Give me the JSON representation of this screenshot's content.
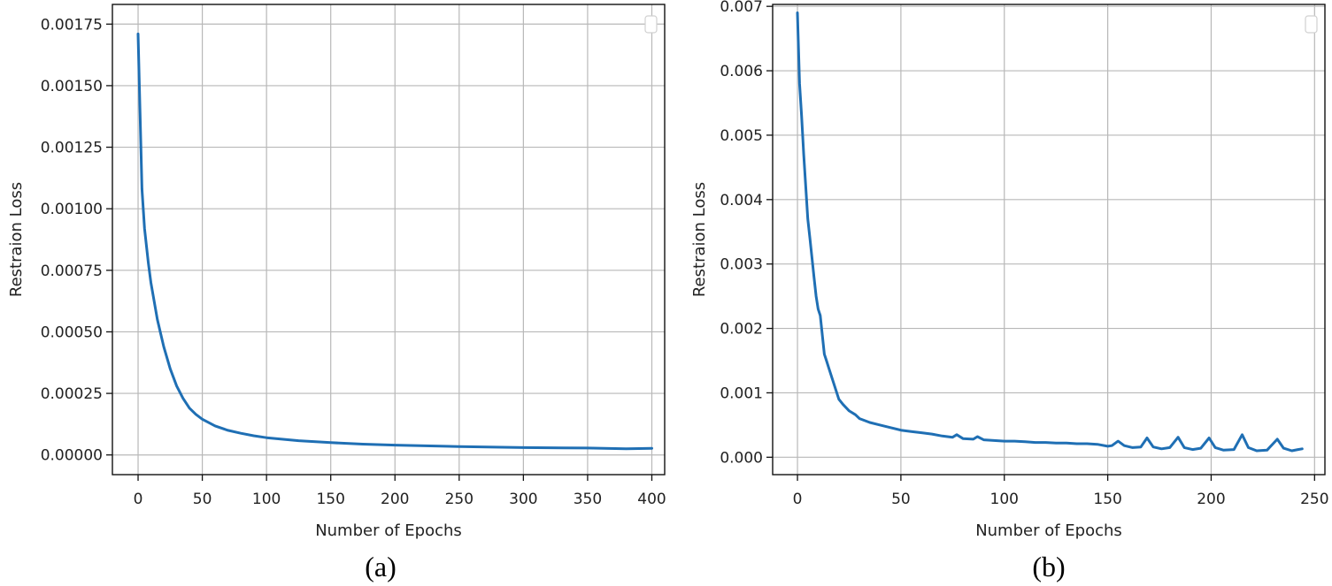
{
  "chart_data": [
    {
      "type": "line",
      "panel_label": "(a)",
      "xlabel": "Number of Epochs",
      "ylabel": "Restraion Loss",
      "xlim": [
        -20,
        410
      ],
      "ylim": [
        -8e-05,
        0.00183
      ],
      "xticks": [
        0,
        50,
        100,
        150,
        200,
        250,
        300,
        350,
        400
      ],
      "xtick_labels": [
        "0",
        "50",
        "100",
        "150",
        "200",
        "250",
        "300",
        "350",
        "400"
      ],
      "yticks": [
        0.0,
        0.00025,
        0.0005,
        0.00075,
        0.001,
        0.00125,
        0.0015,
        0.00175
      ],
      "ytick_labels": [
        "0.00000",
        "0.00025",
        "0.00050",
        "0.00075",
        "0.00100",
        "0.00125",
        "0.00150",
        "0.00175"
      ],
      "grid": true,
      "legend": "top-right (empty)",
      "color": "#1f6fb4",
      "series": [
        {
          "x": [
            0,
            3,
            5,
            8,
            10,
            15,
            20,
            25,
            30,
            35,
            40,
            45,
            50,
            60,
            70,
            80,
            90,
            100,
            125,
            150,
            175,
            200,
            250,
            300,
            350,
            380,
            400
          ],
          "y": [
            0.00171,
            0.00108,
            0.00092,
            0.00078,
            0.0007,
            0.00055,
            0.00044,
            0.00035,
            0.00028,
            0.00023,
            0.00019,
            0.000165,
            0.000145,
            0.000118,
            0.0001,
            8.8e-05,
            7.8e-05,
            7e-05,
            5.8e-05,
            5e-05,
            4.4e-05,
            4e-05,
            3.4e-05,
            3e-05,
            2.8e-05,
            2.5e-05,
            2.7e-05
          ]
        }
      ]
    },
    {
      "type": "line",
      "panel_label": "(b)",
      "xlabel": "Number of Epochs",
      "ylabel": "Restraion Loss",
      "xlim": [
        -12,
        255
      ],
      "ylim": [
        -0.00027,
        0.00703
      ],
      "xticks": [
        0,
        50,
        100,
        150,
        200,
        250
      ],
      "xtick_labels": [
        "0",
        "50",
        "100",
        "150",
        "200",
        "250"
      ],
      "yticks": [
        0.0,
        0.001,
        0.002,
        0.003,
        0.004,
        0.005,
        0.006,
        0.007
      ],
      "ytick_labels": [
        "0.000",
        "0.001",
        "0.002",
        "0.003",
        "0.004",
        "0.005",
        "0.006",
        "0.007"
      ],
      "grid": true,
      "legend": "top-right (empty)",
      "color": "#1f6fb4",
      "series": [
        {
          "x": [
            0,
            1,
            2,
            3,
            4,
            5,
            6,
            7,
            8,
            9,
            10,
            11,
            12,
            13,
            14,
            15,
            17,
            20,
            22,
            25,
            28,
            30,
            35,
            40,
            45,
            50,
            55,
            60,
            65,
            70,
            75,
            77,
            80,
            85,
            87,
            90,
            95,
            100,
            105,
            110,
            115,
            120,
            125,
            130,
            135,
            140,
            145,
            150,
            152,
            155,
            158,
            162,
            166,
            169,
            172,
            176,
            180,
            184,
            187,
            191,
            195,
            199,
            202,
            206,
            211,
            215,
            218,
            222,
            227,
            232,
            235,
            239,
            242,
            244
          ],
          "y": [
            0.0069,
            0.0058,
            0.0053,
            0.0047,
            0.0042,
            0.0037,
            0.0034,
            0.0031,
            0.0028,
            0.0025,
            0.0023,
            0.0022,
            0.0019,
            0.0016,
            0.0015,
            0.0014,
            0.0012,
            0.0009,
            0.00082,
            0.00072,
            0.00066,
            0.0006,
            0.00054,
            0.0005,
            0.00046,
            0.00042,
            0.0004,
            0.00038,
            0.00036,
            0.00033,
            0.00031,
            0.00035,
            0.00029,
            0.00028,
            0.00032,
            0.00027,
            0.00026,
            0.00025,
            0.00025,
            0.00024,
            0.00023,
            0.00023,
            0.00022,
            0.00022,
            0.00021,
            0.00021,
            0.0002,
            0.00017,
            0.00018,
            0.00025,
            0.00018,
            0.00015,
            0.00016,
            0.0003,
            0.00016,
            0.00013,
            0.00015,
            0.00031,
            0.00015,
            0.00012,
            0.00014,
            0.0003,
            0.00015,
            0.00011,
            0.00012,
            0.00035,
            0.00015,
            0.0001,
            0.00011,
            0.00028,
            0.00014,
            0.0001,
            0.00012,
            0.00013
          ]
        }
      ]
    }
  ]
}
